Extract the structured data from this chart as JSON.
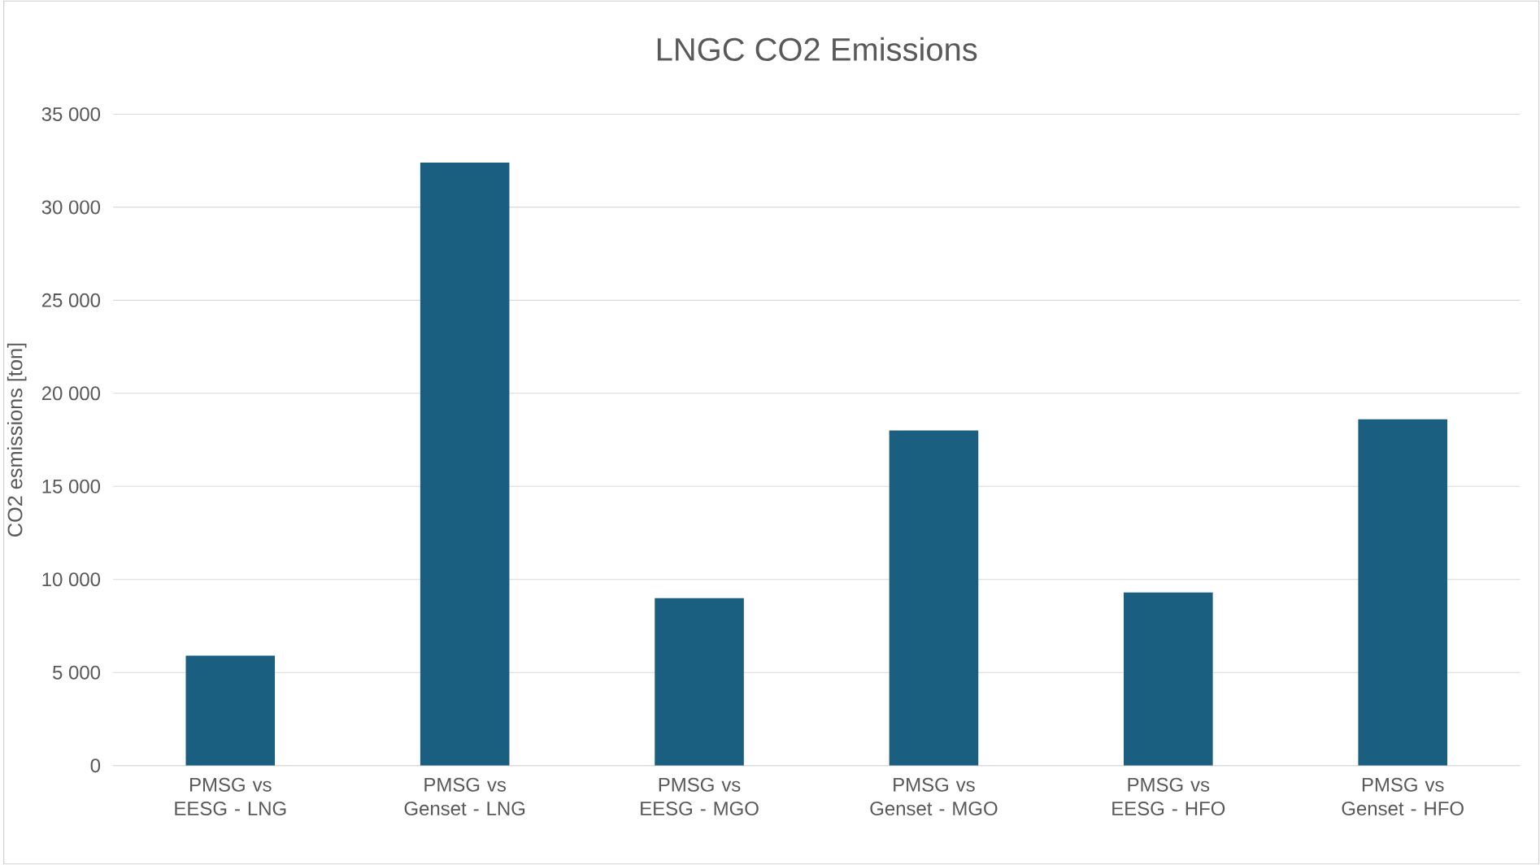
{
  "chart_data": {
    "type": "bar",
    "title": "LNGC CO2 Emissions",
    "ylabel": "CO2 esmissions [ton]",
    "categories": [
      "PMSG vs EESG - LNG",
      "PMSG vs Genset - LNG",
      "PMSG vs EESG - MGO",
      "PMSG vs Genset - MGO",
      "PMSG vs EESG - HFO",
      "PMSG vs Genset - HFO"
    ],
    "values": [
      5900,
      32400,
      9000,
      18000,
      9300,
      18600
    ],
    "color": "#1a5f80",
    "ylim": [
      0,
      35000
    ],
    "yticks": [
      {
        "value": 0,
        "label": "0"
      },
      {
        "value": 5000,
        "label": "5 000"
      },
      {
        "value": 10000,
        "label": "10 000"
      },
      {
        "value": 15000,
        "label": "15 000"
      },
      {
        "value": 20000,
        "label": "20 000"
      },
      {
        "value": 25000,
        "label": "25 000"
      },
      {
        "value": 30000,
        "label": "30 000"
      },
      {
        "value": 35000,
        "label": "35 000"
      }
    ],
    "grid": "y"
  }
}
